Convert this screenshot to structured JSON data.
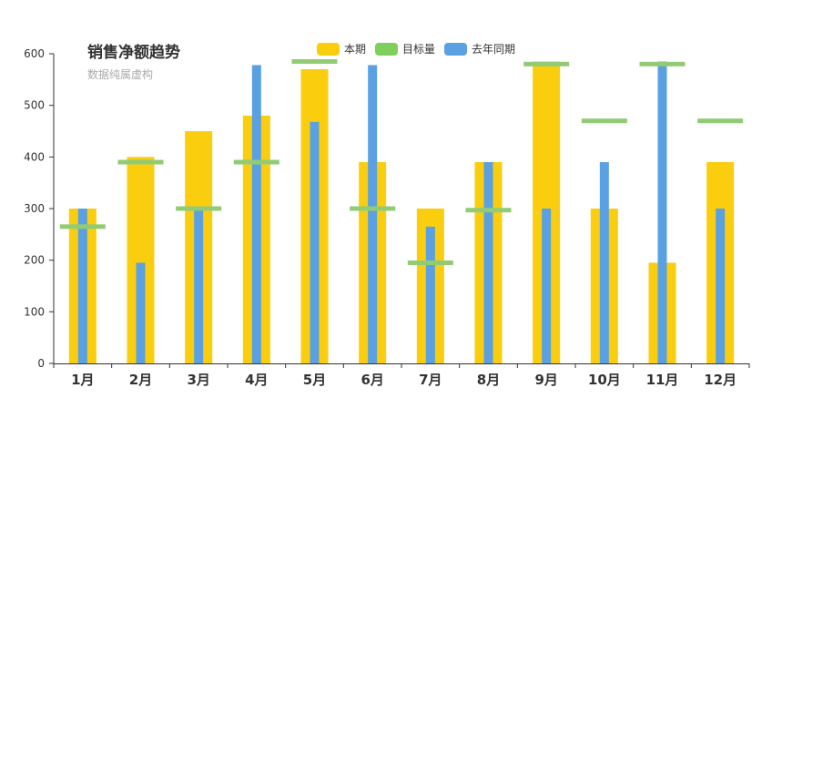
{
  "colors": {
    "current": "#facd0f",
    "target": "#91cc75",
    "target_legend": "#7ed05a",
    "last_year": "#5aa1e3",
    "axis": "#333333"
  },
  "chart_data": {
    "type": "bar",
    "title": "销售净额趋势",
    "subtitle": "数据纯属虚构",
    "categories": [
      "1月",
      "2月",
      "3月",
      "4月",
      "5月",
      "6月",
      "7月",
      "8月",
      "9月",
      "10月",
      "11月",
      "12月"
    ],
    "series": [
      {
        "name": "本期",
        "type": "bar",
        "values": [
          300,
          400,
          450,
          480,
          570,
          390,
          300,
          390,
          585,
          300,
          195,
          390
        ]
      },
      {
        "name": "目标量",
        "type": "marker",
        "values": [
          265,
          390,
          300,
          390,
          585,
          300,
          195,
          297,
          580,
          470,
          580,
          470
        ]
      },
      {
        "name": "去年同期",
        "type": "bar",
        "values": [
          300,
          195,
          300,
          578,
          468,
          578,
          265,
          390,
          300,
          390,
          585,
          300
        ]
      }
    ],
    "ylim": [
      0,
      600
    ],
    "yticks": [
      0,
      100,
      200,
      300,
      400,
      500,
      600
    ],
    "legend_position": "top-center",
    "grid": false
  }
}
